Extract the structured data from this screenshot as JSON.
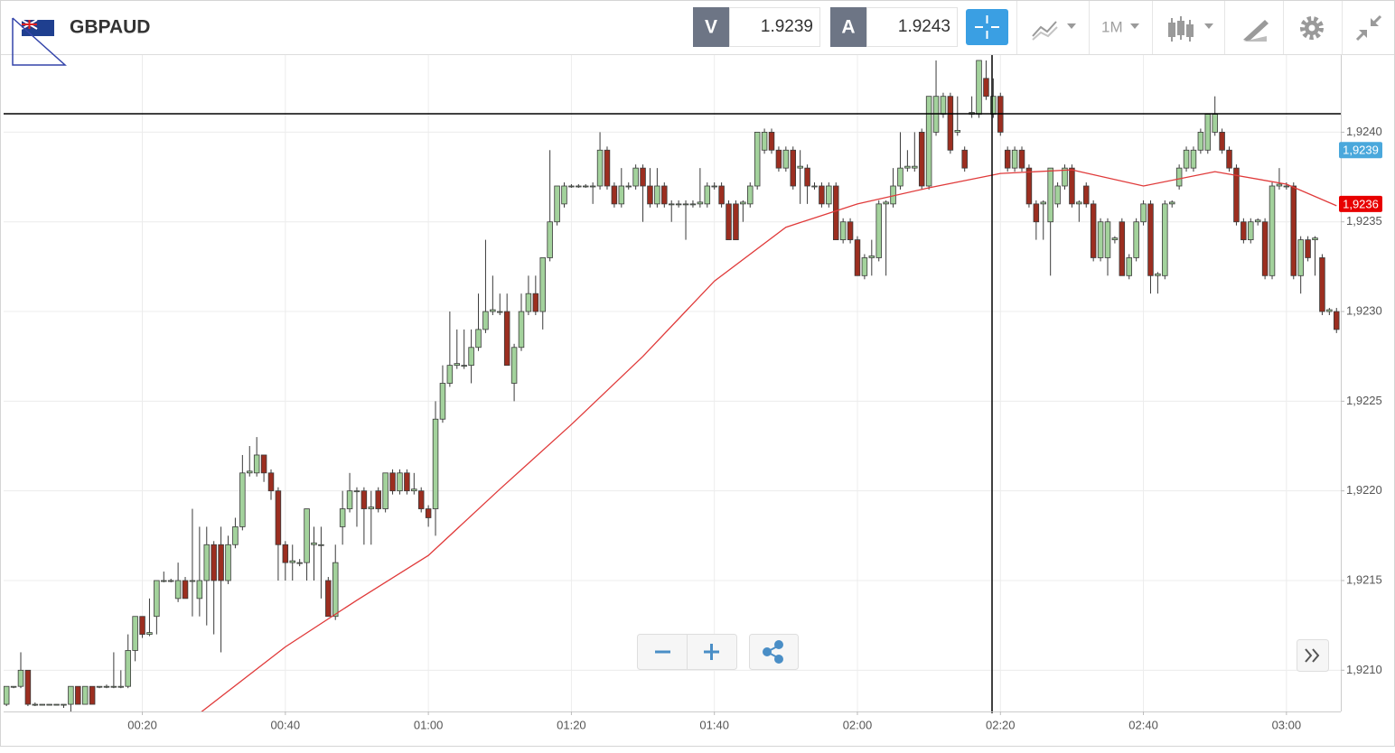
{
  "header": {
    "symbol": "GBPAUD",
    "sell_label": "V",
    "sell_price": "1.9239",
    "buy_label": "A",
    "buy_price": "1.9243",
    "timeframe": "1M"
  },
  "chart_data": {
    "type": "candlestick",
    "x": [
      1,
      2,
      3,
      4,
      5,
      6,
      7,
      8,
      9,
      10,
      11,
      12,
      13,
      14,
      15,
      16,
      17,
      18,
      19,
      20,
      21,
      22,
      23,
      24,
      25,
      26,
      27,
      28,
      29,
      30,
      31,
      32,
      33,
      34,
      35,
      36,
      37,
      38,
      39,
      40,
      41,
      42,
      43,
      44,
      45,
      46,
      47,
      48,
      49,
      50,
      51,
      52,
      53,
      54,
      55,
      56,
      57,
      58,
      59,
      60,
      61,
      62,
      63,
      64,
      65,
      66,
      67,
      68,
      69,
      70,
      71,
      72,
      73,
      74,
      75,
      76,
      77,
      78,
      79,
      80,
      81,
      82,
      83,
      84,
      85,
      86,
      87,
      88,
      89,
      90,
      91,
      92,
      93,
      94,
      95,
      96,
      97,
      98,
      99,
      100,
      101,
      102,
      103,
      104,
      105,
      106,
      107,
      108,
      109,
      110,
      111,
      112,
      113,
      114,
      115,
      116,
      117,
      118,
      119,
      120,
      121,
      122,
      123,
      124,
      125,
      126,
      127,
      128,
      129,
      130,
      131,
      132,
      133,
      134,
      135,
      136,
      137,
      138,
      139,
      140,
      141,
      142,
      143,
      144,
      145,
      146,
      147,
      148,
      149,
      150,
      151,
      152,
      153,
      154,
      155,
      156,
      157,
      158,
      159,
      160,
      161,
      162,
      163,
      164,
      165,
      166,
      167,
      168,
      169,
      170,
      171,
      172,
      173,
      174,
      175,
      176,
      177,
      178,
      179,
      180,
      181,
      182,
      183,
      184,
      185,
      186,
      187
    ],
    "series": [
      {
        "up_color": "#a3d29c",
        "down_color": "#9c2e20",
        "open": [
          1.92081,
          1.92091,
          1.92091,
          1.921,
          1.92081,
          1.92081,
          1.92081,
          1.92081,
          1.92081,
          1.92081,
          1.92091,
          1.92081,
          1.92091,
          1.92091,
          1.92091,
          1.92091,
          1.92091,
          1.92091,
          1.92111,
          1.9213,
          1.9212,
          1.9213,
          1.9215,
          1.9215,
          1.9214,
          1.9215,
          1.9215,
          1.9214,
          1.9215,
          1.9217,
          1.9217,
          1.9215,
          1.9217,
          1.9218,
          1.9221,
          1.9221,
          1.9222,
          1.9221,
          1.922,
          1.9217,
          1.9216,
          1.9216,
          1.9216,
          1.9217,
          1.9217,
          1.9215,
          1.9213,
          1.9218,
          1.9219,
          1.922,
          1.922,
          1.9219,
          1.922,
          1.9219,
          1.9221,
          1.922,
          1.9221,
          1.922,
          1.922,
          1.9219,
          1.9219,
          1.9224,
          1.9226,
          1.9227,
          1.9227,
          1.9227,
          1.9228,
          1.9229,
          1.923,
          1.923,
          1.923,
          1.9226,
          1.9228,
          1.923,
          1.9231,
          1.923,
          1.9233,
          1.9235,
          1.9236,
          1.9237,
          1.9237,
          1.9237,
          1.9237,
          1.9237,
          1.9239,
          1.9237,
          1.9236,
          1.9237,
          1.9237,
          1.9238,
          1.9237,
          1.9236,
          1.9237,
          1.9236,
          1.9236,
          1.9236,
          1.9236,
          1.9236,
          1.9236,
          1.9237,
          1.9237,
          1.9236,
          1.9236,
          1.9236,
          1.9236,
          1.9237,
          1.9239,
          1.924,
          1.9239,
          1.9238,
          1.9239,
          1.9238,
          1.9238,
          1.9237,
          1.9237,
          1.9236,
          1.9237,
          1.9234,
          1.9235,
          1.9234,
          1.9232,
          1.9233,
          1.9233,
          1.9236,
          1.9236,
          1.9237,
          1.9238,
          1.9238,
          1.924,
          1.9237,
          1.924,
          1.9241,
          1.9242,
          1.924,
          1.9239,
          1.9241,
          1.9241,
          1.9243,
          1.9241,
          1.9242,
          1.9239,
          1.9238,
          1.9239,
          1.9238,
          1.9236,
          1.9236,
          1.9235,
          1.9236,
          1.9237,
          1.9238,
          1.9236,
          1.9237,
          1.9236,
          1.9233,
          1.9233,
          1.9234,
          1.9235,
          1.9232,
          1.9233,
          1.9235,
          1.9236,
          1.9232,
          1.9232,
          1.9236,
          1.9237,
          1.9238,
          1.9238,
          1.9239,
          1.9239,
          1.924,
          1.924,
          1.9239,
          1.9238,
          1.9235,
          1.9234,
          1.9235,
          1.9235,
          1.9232,
          1.9237,
          1.9237,
          1.9237,
          1.9232,
          1.9234,
          1.9234,
          1.9233,
          1.923,
          1.923
        ],
        "high": [
          1.92091,
          1.92091,
          1.9211,
          1.921,
          1.92082,
          1.92081,
          1.92081,
          1.92081,
          1.92081,
          1.92091,
          1.92091,
          1.92091,
          1.92091,
          1.92091,
          1.92092,
          1.9211,
          1.921,
          1.9212,
          1.9213,
          1.9213,
          1.9214,
          1.9215,
          1.92155,
          1.92151,
          1.9216,
          1.92152,
          1.9219,
          1.9218,
          1.9218,
          1.92172,
          1.9218,
          1.92175,
          1.92185,
          1.9222,
          1.92225,
          1.9223,
          1.9222,
          1.92212,
          1.92202,
          1.92172,
          1.9217,
          1.92162,
          1.9219,
          1.9218,
          1.9218,
          1.92152,
          1.9217,
          1.922,
          1.9221,
          1.92202,
          1.92202,
          1.922,
          1.92202,
          1.9221,
          1.92212,
          1.92212,
          1.92212,
          1.9221,
          1.92202,
          1.92192,
          1.9225,
          1.9227,
          1.923,
          1.9229,
          1.9229,
          1.9229,
          1.9231,
          1.9234,
          1.9232,
          1.9231,
          1.9231,
          1.92282,
          1.9231,
          1.9232,
          1.9232,
          1.9233,
          1.9239,
          1.9237,
          1.92372,
          1.92371,
          1.92371,
          1.92371,
          1.92372,
          1.924,
          1.92392,
          1.92372,
          1.9238,
          1.92372,
          1.92382,
          1.92382,
          1.9238,
          1.9238,
          1.92372,
          1.92362,
          1.92362,
          1.92362,
          1.92362,
          1.9238,
          1.92372,
          1.92372,
          1.92372,
          1.92362,
          1.92362,
          1.92362,
          1.92372,
          1.924,
          1.92402,
          1.92402,
          1.92392,
          1.92392,
          1.92392,
          1.9239,
          1.92382,
          1.92372,
          1.92372,
          1.92372,
          1.92372,
          1.92352,
          1.92352,
          1.92342,
          1.92332,
          1.9234,
          1.92362,
          1.92362,
          1.9238,
          1.924,
          1.9239,
          1.924,
          1.92402,
          1.9242,
          1.9244,
          1.92422,
          1.92422,
          1.9242,
          1.92392,
          1.9242,
          1.9244,
          1.9244,
          1.9243,
          1.92422,
          1.92392,
          1.92392,
          1.92392,
          1.92382,
          1.92362,
          1.92362,
          1.9238,
          1.92372,
          1.92382,
          1.92382,
          1.92362,
          1.92372,
          1.92362,
          1.92352,
          1.92352,
          1.92342,
          1.92352,
          1.92332,
          1.92352,
          1.92362,
          1.92362,
          1.92322,
          1.92362,
          1.92362,
          1.92382,
          1.92392,
          1.92392,
          1.92402,
          1.9241,
          1.9242,
          1.92402,
          1.92392,
          1.92382,
          1.92352,
          1.92352,
          1.92352,
          1.92352,
          1.92372,
          1.9238,
          1.92372,
          1.92372,
          1.92342,
          1.92342,
          1.92342,
          1.92332,
          1.92302,
          1.92302
        ],
        "low": [
          1.9208,
          1.9209,
          1.9209,
          1.9208,
          1.9208,
          1.92081,
          1.92081,
          1.92081,
          1.92079,
          1.92077,
          1.92081,
          1.92081,
          1.92081,
          1.9209,
          1.9209,
          1.9209,
          1.9209,
          1.9209,
          1.92105,
          1.92118,
          1.92119,
          1.9212,
          1.92149,
          1.92149,
          1.92138,
          1.9214,
          1.9213,
          1.9213,
          1.92125,
          1.9212,
          1.9211,
          1.92148,
          1.92168,
          1.92178,
          1.92208,
          1.92208,
          1.92205,
          1.92195,
          1.9215,
          1.9215,
          1.9215,
          1.92158,
          1.9215,
          1.9215,
          1.9214,
          1.9213,
          1.92128,
          1.9217,
          1.92188,
          1.9218,
          1.9217,
          1.9217,
          1.92188,
          1.92188,
          1.92198,
          1.92198,
          1.92198,
          1.92198,
          1.92188,
          1.9218,
          1.92175,
          1.92238,
          1.92258,
          1.92268,
          1.92268,
          1.9226,
          1.92278,
          1.92288,
          1.92298,
          1.92298,
          1.9227,
          1.9225,
          1.92278,
          1.92298,
          1.92298,
          1.9229,
          1.92328,
          1.92348,
          1.92358,
          1.92369,
          1.92369,
          1.92369,
          1.9236,
          1.92368,
          1.92368,
          1.92358,
          1.92358,
          1.92368,
          1.92368,
          1.9235,
          1.92358,
          1.92358,
          1.92358,
          1.9235,
          1.92358,
          1.9234,
          1.92358,
          1.92358,
          1.92358,
          1.92368,
          1.92358,
          1.9234,
          1.9234,
          1.9235,
          1.92358,
          1.92368,
          1.92388,
          1.92388,
          1.92378,
          1.92378,
          1.92368,
          1.9236,
          1.9236,
          1.92368,
          1.92358,
          1.92358,
          1.9234,
          1.92338,
          1.92338,
          1.9232,
          1.92318,
          1.9232,
          1.92328,
          1.9232,
          1.92358,
          1.92368,
          1.92378,
          1.92378,
          1.92368,
          1.92368,
          1.92398,
          1.92408,
          1.92388,
          1.92398,
          1.92378,
          1.92408,
          1.92408,
          1.92418,
          1.92408,
          1.92398,
          1.92378,
          1.92378,
          1.92378,
          1.92358,
          1.9234,
          1.9234,
          1.9232,
          1.92358,
          1.92368,
          1.92358,
          1.9235,
          1.92358,
          1.92328,
          1.92328,
          1.9232,
          1.92338,
          1.9232,
          1.92318,
          1.92328,
          1.92348,
          1.9231,
          1.9231,
          1.92318,
          1.92358,
          1.92368,
          1.92378,
          1.92378,
          1.92388,
          1.92388,
          1.92398,
          1.92388,
          1.92378,
          1.92348,
          1.92338,
          1.92338,
          1.92348,
          1.92318,
          1.92318,
          1.92368,
          1.92368,
          1.92318,
          1.9231,
          1.92328,
          1.9232,
          1.92298,
          1.92298,
          1.92288
        ],
        "close": [
          1.92091,
          1.92091,
          1.921,
          1.92081,
          1.92081,
          1.92081,
          1.92081,
          1.92081,
          1.92081,
          1.92091,
          1.92081,
          1.92091,
          1.92081,
          1.92091,
          1.92091,
          1.92091,
          1.92091,
          1.92111,
          1.9213,
          1.9212,
          1.92121,
          1.9215,
          1.9215,
          1.9215,
          1.9215,
          1.9214,
          1.9215,
          1.9215,
          1.9217,
          1.9215,
          1.9215,
          1.9217,
          1.9218,
          1.9221,
          1.92211,
          1.9222,
          1.9221,
          1.922,
          1.9217,
          1.9216,
          1.92161,
          1.9216,
          1.9219,
          1.92171,
          1.9217,
          1.9213,
          1.9216,
          1.9219,
          1.922,
          1.922,
          1.9219,
          1.92191,
          1.9219,
          1.9221,
          1.922,
          1.9221,
          1.922,
          1.92201,
          1.9219,
          1.92185,
          1.9224,
          1.9226,
          1.9227,
          1.92271,
          1.9227,
          1.9228,
          1.9229,
          1.923,
          1.92301,
          1.923,
          1.9227,
          1.9228,
          1.923,
          1.9231,
          1.923,
          1.9233,
          1.9235,
          1.9237,
          1.9237,
          1.9237,
          1.9237,
          1.9237,
          1.9237,
          1.9239,
          1.9237,
          1.9236,
          1.9237,
          1.9237,
          1.9238,
          1.9237,
          1.9236,
          1.9237,
          1.9236,
          1.9236,
          1.9236,
          1.9236,
          1.9236,
          1.92361,
          1.9237,
          1.9237,
          1.9236,
          1.9234,
          1.9234,
          1.92361,
          1.9237,
          1.924,
          1.924,
          1.9239,
          1.9238,
          1.9239,
          1.9237,
          1.92381,
          1.9237,
          1.9237,
          1.9236,
          1.9237,
          1.9234,
          1.9235,
          1.9234,
          1.9232,
          1.9233,
          1.92331,
          1.9236,
          1.92361,
          1.9237,
          1.9238,
          1.92381,
          1.92381,
          1.9237,
          1.9242,
          1.9242,
          1.9242,
          1.9239,
          1.92401,
          1.9238,
          1.92411,
          1.9244,
          1.9242,
          1.9242,
          1.924,
          1.9238,
          1.9239,
          1.9238,
          1.9236,
          1.9235,
          1.92361,
          1.9238,
          1.9237,
          1.9238,
          1.9236,
          1.92361,
          1.9236,
          1.9233,
          1.9235,
          1.9235,
          1.92341,
          1.9232,
          1.9233,
          1.9235,
          1.9236,
          1.9232,
          1.92321,
          1.9236,
          1.92361,
          1.9238,
          1.9239,
          1.9239,
          1.924,
          1.9241,
          1.9241,
          1.9239,
          1.9238,
          1.9235,
          1.9234,
          1.9235,
          1.92351,
          1.9232,
          1.9237,
          1.92371,
          1.9237,
          1.9232,
          1.9234,
          1.9233,
          1.92341,
          1.923,
          1.92301,
          1.9229
        ]
      }
    ],
    "overlays": [
      {
        "type": "line",
        "color": "#e03a3a",
        "x": [
          28,
          40,
          50,
          60,
          70,
          80,
          90,
          100,
          110,
          120,
          130,
          140,
          150,
          160,
          170,
          180,
          187
        ],
        "values": [
          1.92076,
          1.92113,
          1.92139,
          1.92164,
          1.92201,
          1.92237,
          1.92275,
          1.92317,
          1.92347,
          1.9236,
          1.92369,
          1.92377,
          1.92379,
          1.9237,
          1.92378,
          1.92371,
          1.92359
        ]
      }
    ],
    "price_tags": [
      {
        "value": 1.9239,
        "label": "1,9239",
        "color": "#4aa8dc"
      },
      {
        "value": 1.9236,
        "label": "1,9236",
        "color": "#e80000"
      }
    ],
    "xlim": [
      0.6,
      187.6
    ],
    "ylim": [
      1.92077,
      1.92443
    ],
    "xticks": [
      {
        "value": 20,
        "label": "00:20"
      },
      {
        "value": 40,
        "label": "00:40"
      },
      {
        "value": 60,
        "label": "01:00"
      },
      {
        "value": 80,
        "label": "01:20"
      },
      {
        "value": 100,
        "label": "01:40"
      },
      {
        "value": 120,
        "label": "02:00"
      },
      {
        "value": 140,
        "label": "02:20"
      },
      {
        "value": 160,
        "label": "02:40"
      },
      {
        "value": 180,
        "label": "03:00"
      }
    ],
    "yticks": [
      {
        "value": 1.921,
        "label": "1,9210"
      },
      {
        "value": 1.9215,
        "label": "1,9215"
      },
      {
        "value": 1.922,
        "label": "1,9220"
      },
      {
        "value": 1.9225,
        "label": "1,9225"
      },
      {
        "value": 1.923,
        "label": "1,9230"
      },
      {
        "value": 1.9235,
        "label": "1,9235"
      },
      {
        "value": 1.924,
        "label": "1,9240"
      }
    ],
    "grid": true
  }
}
